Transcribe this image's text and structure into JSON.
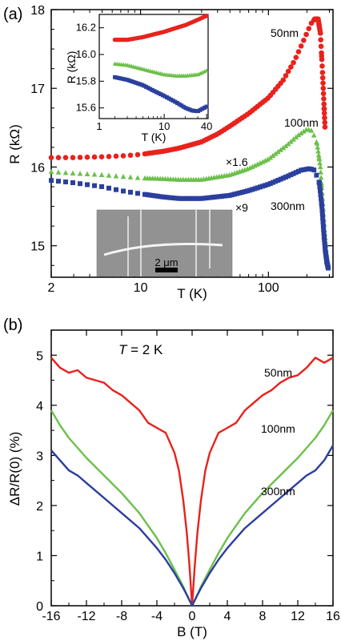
{
  "chart_data": [
    {
      "panel_label": "(a)",
      "type": "scatter",
      "xscale": "log",
      "xlabel": "T (K)",
      "ylabel": "R (kΩ)",
      "xlim": [
        2,
        320
      ],
      "ylim": [
        14.6,
        18
      ],
      "x_tick_labels": [
        "2",
        "10",
        "100"
      ],
      "y_tick_labels": [
        "15",
        "16",
        "17",
        "18"
      ],
      "annotations": [
        "×1.6",
        "×9"
      ],
      "image_scale_label": "2 μm",
      "colors": {
        "50nm": "#e8221c",
        "100nm": "#6cc04a",
        "300nm": "#2b3f9e"
      },
      "series": [
        {
          "name": "50nm",
          "marker": "circle",
          "points": [
            [
              2,
              16.12
            ],
            [
              3,
              16.12
            ],
            [
              5,
              16.13
            ],
            [
              7,
              16.14
            ],
            [
              10,
              16.16
            ],
            [
              15,
              16.2
            ],
            [
              20,
              16.24
            ],
            [
              30,
              16.32
            ],
            [
              40,
              16.42
            ],
            [
              50,
              16.52
            ],
            [
              70,
              16.68
            ],
            [
              100,
              16.88
            ],
            [
              130,
              17.1
            ],
            [
              160,
              17.35
            ],
            [
              190,
              17.62
            ],
            [
              215,
              17.82
            ],
            [
              230,
              17.88
            ],
            [
              245,
              17.88
            ],
            [
              255,
              17.7
            ],
            [
              265,
              17.2
            ],
            [
              272,
              16.8
            ],
            [
              278,
              16.45
            ]
          ]
        },
        {
          "name": "100nm",
          "marker": "triangle",
          "points": [
            [
              2,
              15.94
            ],
            [
              3,
              15.92
            ],
            [
              5,
              15.9
            ],
            [
              7,
              15.88
            ],
            [
              10,
              15.86
            ],
            [
              15,
              15.85
            ],
            [
              20,
              15.84
            ],
            [
              30,
              15.84
            ],
            [
              50,
              15.9
            ],
            [
              70,
              15.98
            ],
            [
              100,
              16.1
            ],
            [
              140,
              16.28
            ],
            [
              170,
              16.4
            ],
            [
              200,
              16.48
            ],
            [
              220,
              16.46
            ],
            [
              240,
              16.3
            ],
            [
              255,
              16.0
            ],
            [
              265,
              15.6
            ],
            [
              275,
              15.2
            ],
            [
              285,
              14.9
            ],
            [
              295,
              14.7
            ]
          ]
        },
        {
          "name": "300nm",
          "marker": "square",
          "points": [
            [
              2,
              15.83
            ],
            [
              3,
              15.8
            ],
            [
              5,
              15.75
            ],
            [
              7,
              15.7
            ],
            [
              10,
              15.66
            ],
            [
              15,
              15.62
            ],
            [
              20,
              15.6
            ],
            [
              30,
              15.6
            ],
            [
              50,
              15.64
            ],
            [
              70,
              15.7
            ],
            [
              100,
              15.78
            ],
            [
              140,
              15.88
            ],
            [
              180,
              15.96
            ],
            [
              210,
              15.98
            ],
            [
              230,
              15.96
            ],
            [
              250,
              15.8
            ],
            [
              262,
              15.5
            ],
            [
              270,
              15.2
            ],
            [
              278,
              14.95
            ],
            [
              286,
              14.8
            ],
            [
              295,
              14.7
            ]
          ]
        }
      ],
      "inset": {
        "xscale": "log",
        "xlabel": "T (K)",
        "ylabel": "R (kΩ)",
        "xlim": [
          1.2,
          42
        ],
        "ylim": [
          15.52,
          16.3
        ],
        "x_tick_labels": [
          "1",
          "10",
          "40"
        ],
        "y_tick_labels": [
          "15.6",
          "15.8",
          "16.0",
          "16.2"
        ],
        "series": [
          {
            "name": "50nm",
            "marker": "circle",
            "points": [
              [
                2,
                16.11
              ],
              [
                3,
                16.11
              ],
              [
                5,
                16.13
              ],
              [
                7,
                16.15
              ],
              [
                10,
                16.17
              ],
              [
                15,
                16.2
              ],
              [
                20,
                16.22
              ],
              [
                30,
                16.26
              ],
              [
                40,
                16.29
              ]
            ]
          },
          {
            "name": "100nm",
            "marker": "triangle",
            "points": [
              [
                2,
                15.93
              ],
              [
                3,
                15.92
              ],
              [
                5,
                15.89
              ],
              [
                7,
                15.87
              ],
              [
                10,
                15.85
              ],
              [
                15,
                15.84
              ],
              [
                20,
                15.84
              ],
              [
                30,
                15.85
              ],
              [
                40,
                15.88
              ]
            ]
          },
          {
            "name": "300nm",
            "marker": "square",
            "points": [
              [
                2,
                15.83
              ],
              [
                3,
                15.81
              ],
              [
                5,
                15.77
              ],
              [
                7,
                15.73
              ],
              [
                10,
                15.69
              ],
              [
                15,
                15.64
              ],
              [
                20,
                15.6
              ],
              [
                25,
                15.58
              ],
              [
                30,
                15.575
              ],
              [
                40,
                15.61
              ]
            ]
          }
        ]
      }
    },
    {
      "panel_label": "(b)",
      "type": "line",
      "xlabel": "B (T)",
      "ylabel": "ΔR/R(0) (%)",
      "xlim": [
        -16,
        16
      ],
      "ylim": [
        0,
        5.5
      ],
      "x_tick_labels": [
        "-16",
        "-12",
        "-8",
        "-4",
        "0",
        "4",
        "8",
        "12",
        "16"
      ],
      "y_tick_labels": [
        "0",
        "1",
        "2",
        "3",
        "4",
        "5"
      ],
      "annotation": "T = 2 K",
      "colors": {
        "50nm": "#e8221c",
        "100nm": "#6cc04a",
        "300nm": "#2b3f9e"
      },
      "series": [
        {
          "name": "50nm",
          "points": [
            [
              -16,
              4.95
            ],
            [
              -15,
              4.75
            ],
            [
              -14,
              4.65
            ],
            [
              -13,
              4.7
            ],
            [
              -12,
              4.55
            ],
            [
              -11,
              4.5
            ],
            [
              -10,
              4.45
            ],
            [
              -9,
              4.3
            ],
            [
              -8,
              4.2
            ],
            [
              -7,
              4.05
            ],
            [
              -6,
              3.9
            ],
            [
              -5,
              3.65
            ],
            [
              -4,
              3.55
            ],
            [
              -3,
              3.45
            ],
            [
              -2,
              3.05
            ],
            [
              -1.5,
              2.7
            ],
            [
              -1,
              2.1
            ],
            [
              -0.6,
              1.45
            ],
            [
              -0.3,
              0.8
            ],
            [
              0,
              0
            ],
            [
              0.3,
              0.8
            ],
            [
              0.6,
              1.45
            ],
            [
              1,
              2.1
            ],
            [
              1.5,
              2.7
            ],
            [
              2,
              3.05
            ],
            [
              3,
              3.45
            ],
            [
              4,
              3.55
            ],
            [
              5,
              3.65
            ],
            [
              6,
              3.9
            ],
            [
              7,
              4.05
            ],
            [
              8,
              4.2
            ],
            [
              9,
              4.3
            ],
            [
              10,
              4.45
            ],
            [
              11,
              4.55
            ],
            [
              12,
              4.6
            ],
            [
              13,
              4.75
            ],
            [
              14,
              4.95
            ],
            [
              15,
              4.85
            ],
            [
              16,
              4.95
            ]
          ]
        },
        {
          "name": "100nm",
          "points": [
            [
              -16,
              3.9
            ],
            [
              -15,
              3.6
            ],
            [
              -14,
              3.35
            ],
            [
              -13,
              3.15
            ],
            [
              -12,
              2.95
            ],
            [
              -10,
              2.6
            ],
            [
              -8,
              2.25
            ],
            [
              -6,
              1.85
            ],
            [
              -4,
              1.35
            ],
            [
              -3,
              1.05
            ],
            [
              -2,
              0.72
            ],
            [
              -1,
              0.38
            ],
            [
              -0.5,
              0.18
            ],
            [
              0,
              0
            ],
            [
              0.5,
              0.18
            ],
            [
              1,
              0.38
            ],
            [
              2,
              0.72
            ],
            [
              3,
              1.05
            ],
            [
              4,
              1.35
            ],
            [
              6,
              1.85
            ],
            [
              8,
              2.25
            ],
            [
              10,
              2.6
            ],
            [
              12,
              2.95
            ],
            [
              13,
              3.15
            ],
            [
              14,
              3.35
            ],
            [
              15,
              3.6
            ],
            [
              16,
              3.9
            ]
          ]
        },
        {
          "name": "300nm",
          "points": [
            [
              -16,
              3.1
            ],
            [
              -15,
              2.9
            ],
            [
              -14,
              2.7
            ],
            [
              -13,
              2.6
            ],
            [
              -12,
              2.45
            ],
            [
              -10,
              2.15
            ],
            [
              -8,
              1.85
            ],
            [
              -6,
              1.55
            ],
            [
              -4,
              1.15
            ],
            [
              -3,
              0.92
            ],
            [
              -2,
              0.65
            ],
            [
              -1,
              0.35
            ],
            [
              -0.5,
              0.18
            ],
            [
              0,
              0
            ],
            [
              0.5,
              0.18
            ],
            [
              1,
              0.35
            ],
            [
              2,
              0.65
            ],
            [
              3,
              0.92
            ],
            [
              4,
              1.15
            ],
            [
              6,
              1.55
            ],
            [
              8,
              1.85
            ],
            [
              10,
              2.15
            ],
            [
              12,
              2.45
            ],
            [
              13,
              2.6
            ],
            [
              14,
              2.7
            ],
            [
              15,
              2.9
            ],
            [
              16,
              3.2
            ]
          ]
        }
      ]
    }
  ],
  "labels": {
    "a": {
      "s50": "50nm",
      "s100": "100nm",
      "s300": "300nm",
      "mult100": "×1.6",
      "mult300": "×9",
      "scale": "2 μm"
    },
    "b": {
      "s50": "50nm",
      "s100": "100nm",
      "s300": "300nm",
      "temp_italic": "T",
      "temp_rest": " = 2 K"
    }
  }
}
